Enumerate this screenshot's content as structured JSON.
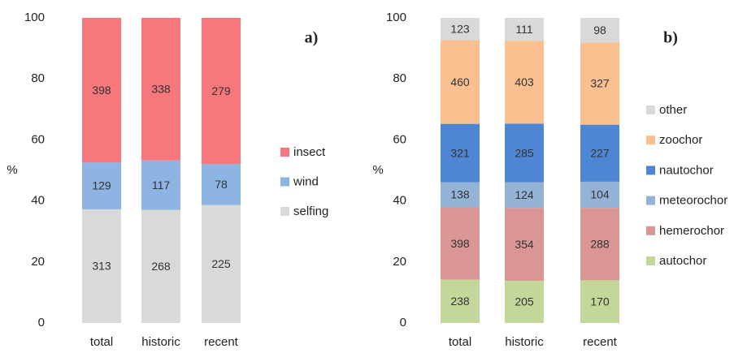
{
  "chart_data": [
    {
      "type": "bar",
      "stacking": "percent",
      "label": "a)",
      "ylabel": "%",
      "categories": [
        "total",
        "historic",
        "recent"
      ],
      "ylim": [
        0,
        100
      ],
      "yticks": [
        0,
        20,
        40,
        60,
        80,
        100
      ],
      "series": [
        {
          "name": "selfing",
          "color": "#d9d9d9",
          "values": [
            313,
            268,
            225
          ]
        },
        {
          "name": "wind",
          "color": "#8db4e2",
          "values": [
            129,
            117,
            78
          ]
        },
        {
          "name": "insect",
          "color": "#f6777c",
          "values": [
            398,
            338,
            279
          ]
        }
      ]
    },
    {
      "type": "bar",
      "stacking": "percent",
      "label": "b)",
      "ylabel": "%",
      "categories": [
        "total",
        "historic",
        "recent"
      ],
      "ylim": [
        0,
        100
      ],
      "yticks": [
        0,
        20,
        40,
        60,
        80,
        100
      ],
      "series": [
        {
          "name": "autochor",
          "color": "#c4d79b",
          "values": [
            238,
            205,
            170
          ]
        },
        {
          "name": "hemerochor",
          "color": "#da9694",
          "values": [
            398,
            354,
            288
          ]
        },
        {
          "name": "meteorochor",
          "color": "#95b3d7",
          "values": [
            138,
            124,
            104
          ]
        },
        {
          "name": "nautochor",
          "color": "#4f86d4",
          "values": [
            321,
            285,
            227
          ]
        },
        {
          "name": "zoochor",
          "color": "#fac090",
          "values": [
            460,
            403,
            327
          ]
        },
        {
          "name": "other",
          "color": "#d9d9d9",
          "values": [
            123,
            111,
            98
          ]
        }
      ]
    }
  ]
}
